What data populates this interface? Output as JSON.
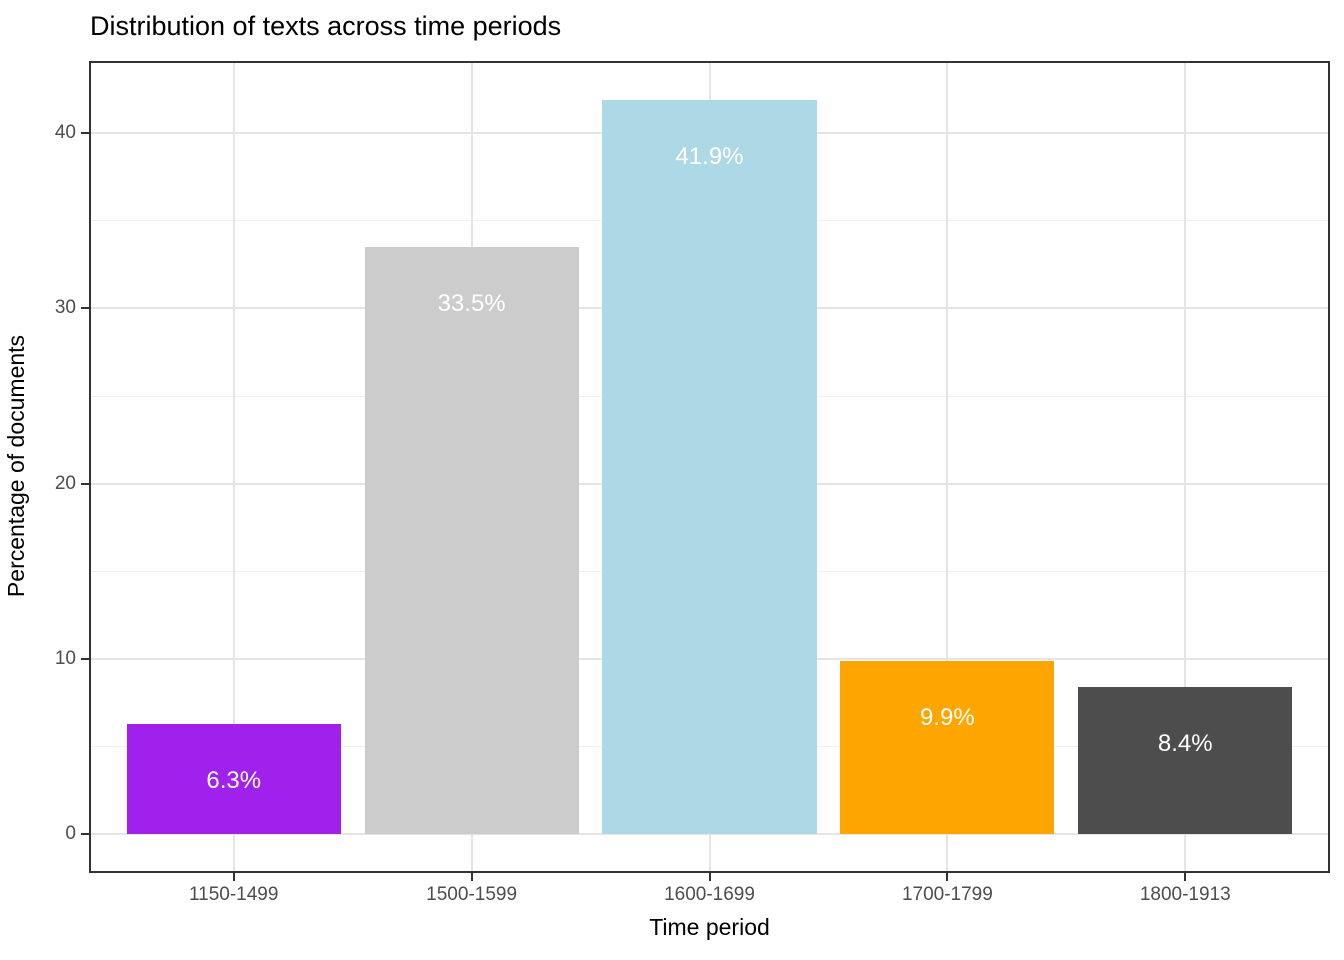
{
  "title": "Distribution of texts across time periods",
  "axes": {
    "x_title": "Time period",
    "y_title": "Percentage of documents"
  },
  "chart_data": {
    "type": "bar",
    "title": "Distribution of texts across time periods",
    "xlabel": "Time period",
    "ylabel": "Percentage of documents",
    "categories": [
      "1150-1499",
      "1500-1599",
      "1600-1699",
      "1700-1799",
      "1800-1913"
    ],
    "values": [
      6.3,
      33.5,
      41.9,
      9.9,
      8.4
    ],
    "value_labels": [
      "6.3%",
      "33.5%",
      "41.9%",
      "9.9%",
      "8.4%"
    ],
    "bar_colors": [
      "#A021EB",
      "#CCCCCC",
      "#ADD8E6",
      "#FFA500",
      "#4D4D4D"
    ],
    "ylim": [
      -2.1,
      44.0
    ],
    "yticks": [
      0,
      10,
      20,
      30,
      40
    ],
    "ytick_labels": [
      "0",
      "10",
      "20",
      "30",
      "40"
    ],
    "yticks_minor": [
      5,
      15,
      25,
      35
    ],
    "bar_width_ratio": 0.9,
    "grid": "on",
    "legend_position": "none",
    "label_color": "#FFFFFF"
  },
  "colors": {
    "background": "#FFFFFF",
    "panel_border": "#333333",
    "grid_major": "#E5E5E5",
    "grid_minor": "#F0F0F0",
    "tick_mark": "#333333",
    "tick_label": "#4D4D4D",
    "title_text": "#000000",
    "axis_title_text": "#000000",
    "bar_label_text": "#FFFFFF"
  }
}
